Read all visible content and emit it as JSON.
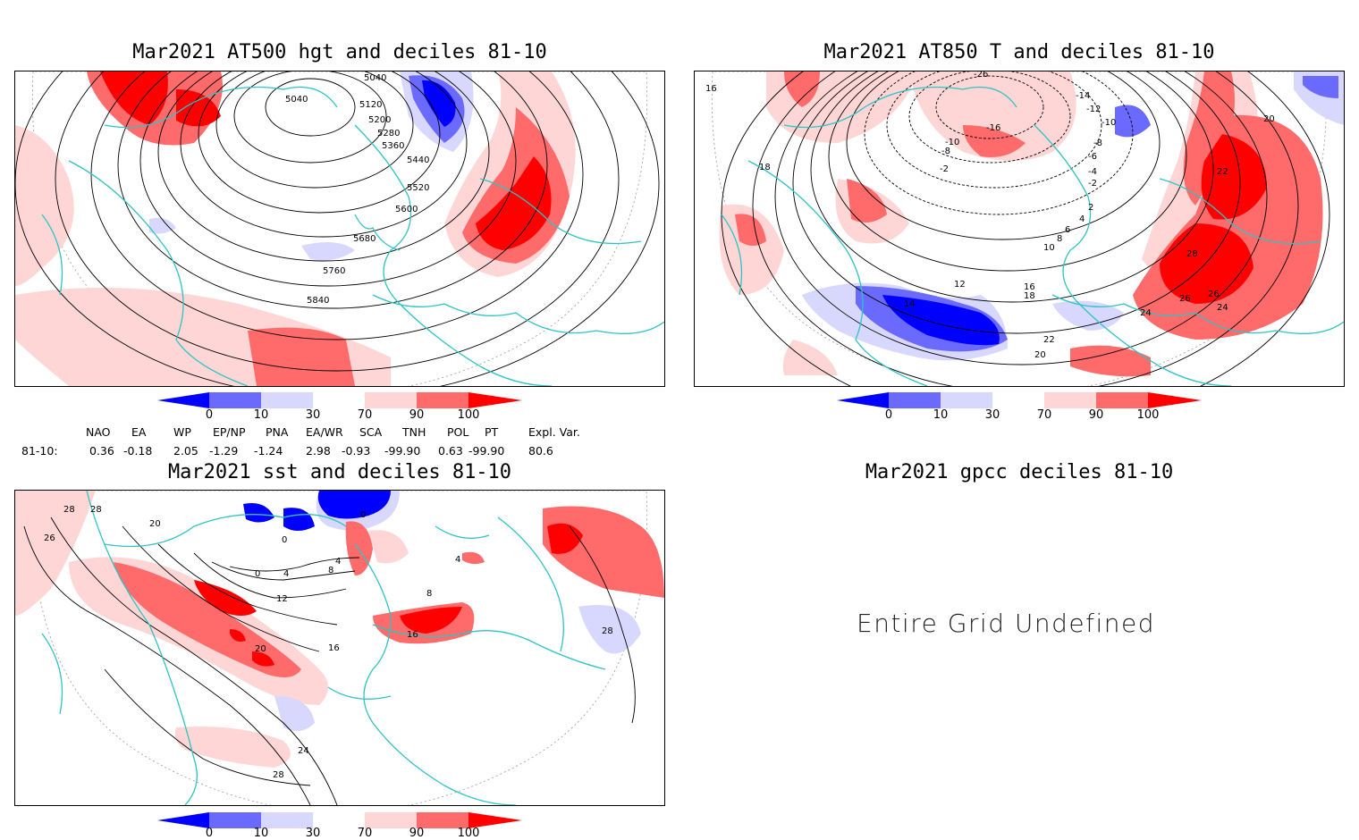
{
  "panels": {
    "hgt": {
      "title": "Mar2021 AT500 hgt and deciles 81-10",
      "contour_labels": [
        "5040",
        "5040",
        "5120",
        "5200",
        "5280",
        "5360",
        "5440",
        "5520",
        "5600",
        "5680",
        "5760",
        "5840"
      ]
    },
    "t850": {
      "title": "Mar2021 AT850 T and deciles 81-10",
      "contour_labels": [
        "-26",
        "-14",
        "-12",
        "-10",
        "-8",
        "-6",
        "-4",
        "-2",
        "2",
        "4",
        "6",
        "8",
        "10",
        "12",
        "14",
        "16",
        "16",
        "18",
        "18",
        "20",
        "20",
        "22",
        "22",
        "24",
        "24",
        "26",
        "26",
        "28",
        "-16",
        "-10",
        "-8",
        "-2"
      ]
    },
    "sst": {
      "title": "Mar2021 sst and deciles 81-10",
      "contour_labels": [
        "28",
        "28",
        "26",
        "20",
        "0",
        "0",
        "4",
        "4",
        "8",
        "12",
        "16",
        "20",
        "24",
        "28",
        "28",
        "16",
        "0",
        "4",
        "8"
      ]
    },
    "gpcc": {
      "title": "Mar2021 gpcc deciles 81-10",
      "message": "Entire Grid Undefined"
    }
  },
  "colorbar": {
    "ticks": [
      "0",
      "10",
      "30",
      "70",
      "90",
      "100"
    ],
    "colors": [
      "#0000ff",
      "#6a6aff",
      "#d8d8ff",
      "#ffffff",
      "#ffd6d6",
      "#ff6a6a",
      "#ff0000"
    ]
  },
  "indices": {
    "headers": [
      "NAO",
      "EA",
      "WP",
      "EP/NP",
      "PNA",
      "EA/WR",
      "SCA",
      "TNH",
      "POL",
      "PT",
      "Expl. Var."
    ],
    "row_label": "81-10:",
    "values": [
      "0.36",
      "-0.18",
      "2.05",
      "-1.29",
      "-1.24",
      "2.98",
      "-0.93",
      "-99.90",
      "0.63",
      "-99.90",
      "80.6"
    ]
  },
  "colors": {
    "coast": "#2ec4c4",
    "strong_red": "#ff1010",
    "mid_red": "#ff6a6a",
    "light_red": "#ffd6d6",
    "strong_blue": "#0000ff",
    "mid_blue": "#6a6aff",
    "light_blue": "#d8d8ff"
  }
}
